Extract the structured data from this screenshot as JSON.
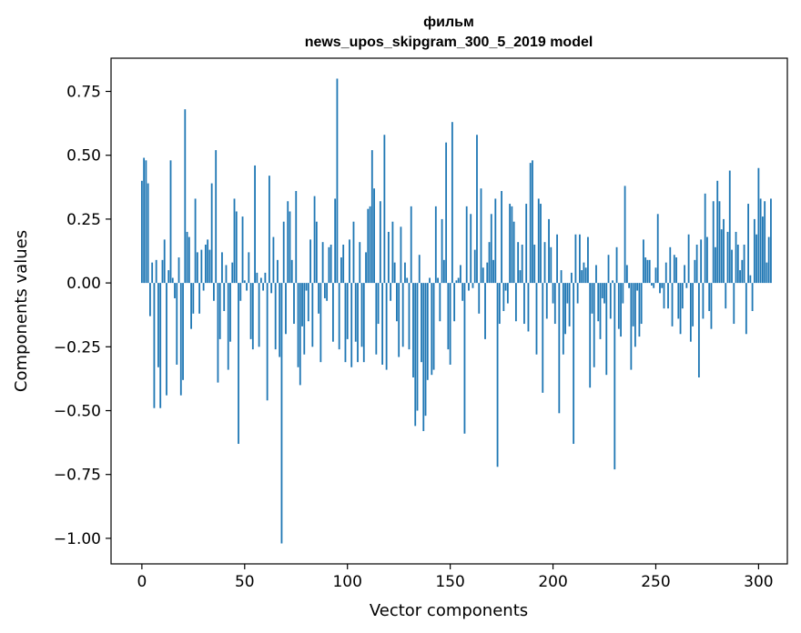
{
  "chart_data": {
    "type": "bar",
    "title": "фильм",
    "subtitle": "news_upos_skipgram_300_5_2019 model",
    "xlabel": "Vector components",
    "ylabel": "Components values",
    "xlim": [
      -15,
      314
    ],
    "ylim": [
      -1.1,
      0.88
    ],
    "xticks": [
      0,
      50,
      100,
      150,
      200,
      250,
      300
    ],
    "xtick_labels": [
      "0",
      "50",
      "100",
      "150",
      "200",
      "250",
      "300"
    ],
    "yticks": [
      0.75,
      0.5,
      0.25,
      0.0,
      -0.25,
      -0.5,
      -0.75,
      -1.0
    ],
    "ytick_labels": [
      "0.75",
      "0.50",
      "0.25",
      "0.00",
      "−0.25",
      "−0.50",
      "−0.75",
      "−1.00"
    ],
    "bar_color": "#1f77b4",
    "values": [
      0.4,
      0.49,
      0.48,
      0.39,
      -0.13,
      0.08,
      -0.49,
      0.09,
      -0.33,
      -0.49,
      0.09,
      0.17,
      -0.44,
      0.05,
      0.48,
      0.02,
      -0.06,
      -0.32,
      0.1,
      -0.44,
      -0.38,
      0.68,
      0.2,
      0.18,
      -0.18,
      -0.12,
      0.33,
      0.12,
      -0.12,
      0.13,
      -0.03,
      0.15,
      0.17,
      0.13,
      0.39,
      -0.07,
      0.52,
      -0.39,
      -0.22,
      0.12,
      -0.11,
      0.07,
      -0.34,
      -0.23,
      0.08,
      0.33,
      0.28,
      -0.63,
      -0.07,
      0.26,
      0.01,
      -0.03,
      0.12,
      -0.22,
      -0.26,
      0.46,
      0.04,
      -0.25,
      0.02,
      -0.03,
      0.04,
      -0.46,
      0.42,
      -0.04,
      0.18,
      -0.26,
      0.09,
      -0.29,
      -1.02,
      0.24,
      -0.2,
      0.32,
      0.28,
      0.09,
      -0.16,
      0.36,
      -0.33,
      -0.4,
      -0.17,
      -0.28,
      -0.03,
      -0.15,
      0.17,
      -0.25,
      0.34,
      0.24,
      -0.12,
      -0.31,
      0.16,
      -0.06,
      -0.07,
      0.14,
      0.15,
      -0.23,
      0.33,
      0.8,
      -0.26,
      0.1,
      0.15,
      -0.31,
      -0.22,
      0.17,
      -0.33,
      0.24,
      -0.23,
      -0.31,
      0.16,
      -0.25,
      -0.31,
      0.12,
      0.29,
      0.3,
      0.52,
      0.37,
      -0.28,
      -0.16,
      0.32,
      -0.32,
      0.58,
      -0.34,
      0.2,
      -0.07,
      0.24,
      0.08,
      -0.15,
      -0.29,
      0.22,
      -0.25,
      0.08,
      0.02,
      -0.26,
      0.3,
      -0.37,
      -0.56,
      -0.5,
      0.11,
      -0.31,
      -0.58,
      -0.52,
      -0.38,
      0.02,
      -0.36,
      -0.34,
      0.3,
      0.02,
      -0.15,
      0.25,
      0.09,
      0.55,
      -0.26,
      -0.32,
      0.63,
      -0.15,
      0.01,
      0.02,
      0.07,
      -0.07,
      -0.59,
      0.3,
      -0.03,
      0.27,
      -0.02,
      0.13,
      0.58,
      -0.12,
      0.37,
      0.06,
      -0.22,
      0.08,
      0.16,
      0.27,
      0.09,
      0.33,
      -0.72,
      -0.16,
      0.36,
      -0.11,
      -0.03,
      -0.08,
      0.31,
      0.3,
      0.24,
      -0.15,
      0.16,
      0.05,
      0.15,
      -0.16,
      0.31,
      -0.19,
      0.47,
      0.48,
      0.15,
      -0.28,
      0.33,
      0.31,
      -0.43,
      0.16,
      -0.14,
      0.25,
      0.14,
      -0.08,
      -0.16,
      0.19,
      -0.51,
      0.05,
      -0.28,
      -0.2,
      -0.08,
      -0.17,
      0.04,
      -0.63,
      0.19,
      -0.08,
      0.19,
      0.05,
      0.08,
      0.06,
      0.18,
      -0.41,
      -0.12,
      -0.33,
      0.07,
      -0.15,
      -0.22,
      -0.06,
      -0.08,
      -0.36,
      0.11,
      -0.14,
      0.01,
      -0.73,
      0.14,
      -0.18,
      -0.21,
      -0.08,
      0.38,
      0.07,
      -0.02,
      -0.34,
      -0.17,
      -0.25,
      -0.03,
      -0.21,
      -0.16,
      0.17,
      0.1,
      0.09,
      0.09,
      -0.01,
      -0.02,
      0.06,
      0.27,
      -0.04,
      -0.02,
      -0.1,
      0.08,
      -0.1,
      0.14,
      -0.17,
      0.11,
      0.1,
      -0.14,
      -0.2,
      -0.1,
      0.07,
      -0.02,
      0.19,
      -0.23,
      -0.17,
      0.09,
      0.15,
      -0.37,
      0.17,
      -0.14,
      0.35,
      0.18,
      -0.11,
      -0.18,
      0.32,
      0.14,
      0.4,
      0.32,
      0.21,
      0.25,
      -0.1,
      0.2,
      0.44,
      0.13,
      -0.16,
      0.2,
      0.15,
      0.05,
      0.09,
      0.15,
      -0.2,
      0.31,
      0.03,
      -0.11,
      0.25,
      0.19,
      0.45,
      0.33,
      0.26,
      0.32,
      0.08,
      0.18,
      0.33
    ]
  }
}
